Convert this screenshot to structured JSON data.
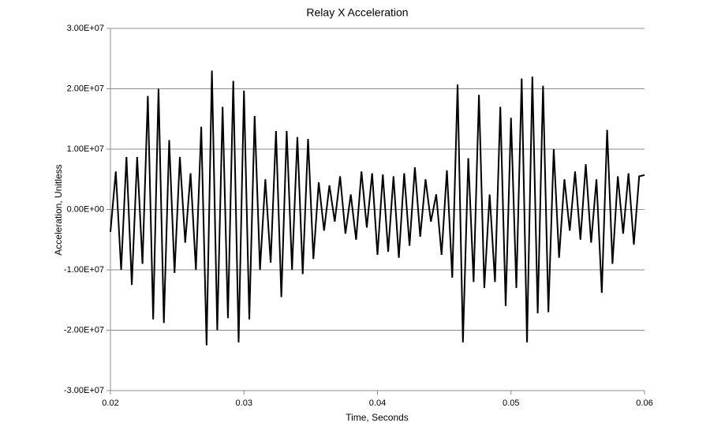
{
  "chart_data": {
    "type": "line",
    "title": "Relay X Acceleration",
    "xlabel": "Time, Seconds",
    "ylabel": "Acceleration, Unitless",
    "x": [
      0.02,
      0.0204,
      0.0208,
      0.0212,
      0.0216,
      0.022,
      0.0224,
      0.0228,
      0.0232,
      0.0236,
      0.024,
      0.0244,
      0.0248,
      0.0252,
      0.0256,
      0.026,
      0.0264,
      0.0268,
      0.0272,
      0.0276,
      0.028,
      0.0284,
      0.0288,
      0.0292,
      0.0296,
      0.03,
      0.0304,
      0.0308,
      0.0312,
      0.0316,
      0.032,
      0.0324,
      0.0328,
      0.0332,
      0.0336,
      0.034,
      0.0344,
      0.0348,
      0.0352,
      0.0356,
      0.036,
      0.0364,
      0.0368,
      0.0372,
      0.0376,
      0.038,
      0.0384,
      0.0388,
      0.0392,
      0.0396,
      0.04,
      0.0404,
      0.0408,
      0.0412,
      0.0416,
      0.042,
      0.0424,
      0.0428,
      0.0432,
      0.0436,
      0.044,
      0.0444,
      0.0448,
      0.0452,
      0.0456,
      0.046,
      0.0464,
      0.0468,
      0.0472,
      0.0476,
      0.048,
      0.0484,
      0.0488,
      0.0492,
      0.0496,
      0.05,
      0.0504,
      0.0508,
      0.0512,
      0.0516,
      0.052,
      0.0524,
      0.0528,
      0.0532,
      0.0536,
      0.054,
      0.0544,
      0.0548,
      0.0552,
      0.0556,
      0.056,
      0.0564,
      0.0568,
      0.0572,
      0.0576,
      0.058,
      0.0584,
      0.0588,
      0.0592,
      0.0596,
      0.06
    ],
    "series": [
      {
        "name": "Relay X",
        "color": "#000000",
        "values": [
          -3700000.0,
          6300000.0,
          -10000000.0,
          8700000.0,
          -12500000.0,
          8700000.0,
          -9000000.0,
          18800000.0,
          -18200000.0,
          20000000.0,
          -18800000.0,
          11500000.0,
          -10500000.0,
          8700000.0,
          -5500000.0,
          6000000.0,
          -10000000.0,
          13700000.0,
          -22500000.0,
          23000000.0,
          -20000000.0,
          17000000.0,
          -18000000.0,
          21300000.0,
          -22000000.0,
          19700000.0,
          -18200000.0,
          15500000.0,
          -10000000.0,
          5000000.0,
          -8800000.0,
          13000000.0,
          -14500000.0,
          13000000.0,
          -10000000.0,
          12000000.0,
          -10700000.0,
          11700000.0,
          -8200000.0,
          4500000.0,
          -3500000.0,
          4000000.0,
          -2000000.0,
          5500000.0,
          -4000000.0,
          2500000.0,
          -5000000.0,
          6300000.0,
          -3000000.0,
          6000000.0,
          -7500000.0,
          5800000.0,
          -7000000.0,
          5500000.0,
          -8000000.0,
          6000000.0,
          -6000000.0,
          7000000.0,
          -4500000.0,
          5000000.0,
          -2000000.0,
          2500000.0,
          -7500000.0,
          6500000.0,
          -11300000.0,
          20700000.0,
          -22000000.0,
          8500000.0,
          -12000000.0,
          19000000.0,
          -13000000.0,
          2500000.0,
          -12000000.0,
          17000000.0,
          -16000000.0,
          15200000.0,
          -13000000.0,
          21700000.0,
          -22000000.0,
          22000000.0,
          -17200000.0,
          20500000.0,
          -17000000.0,
          10000000.0,
          -8000000.0,
          5000000.0,
          -3500000.0,
          6300000.0,
          -5000000.0,
          7500000.0,
          -5500000.0,
          5000000.0,
          -13800000.0,
          13200000.0,
          -9000000.0,
          5500000.0,
          -4000000.0,
          6000000.0,
          -5800000.0,
          5500000.0,
          5700000.0
        ]
      }
    ],
    "xlim": [
      0.02,
      0.06
    ],
    "xticks": [
      0.02,
      0.03,
      0.04,
      0.05,
      0.06
    ],
    "ylim": [
      -30000000,
      30000000
    ],
    "yticks": [
      {
        "value": -30000000,
        "label": "-3.00E+07"
      },
      {
        "value": -20000000,
        "label": "-2.00E+07"
      },
      {
        "value": -10000000,
        "label": "-1.00E+07"
      },
      {
        "value": 0,
        "label": "0.00E+00"
      },
      {
        "value": 10000000,
        "label": "1.00E+07"
      },
      {
        "value": 20000000,
        "label": "2.00E+07"
      },
      {
        "value": 30000000,
        "label": "3.00E+07"
      }
    ],
    "grid": true
  }
}
